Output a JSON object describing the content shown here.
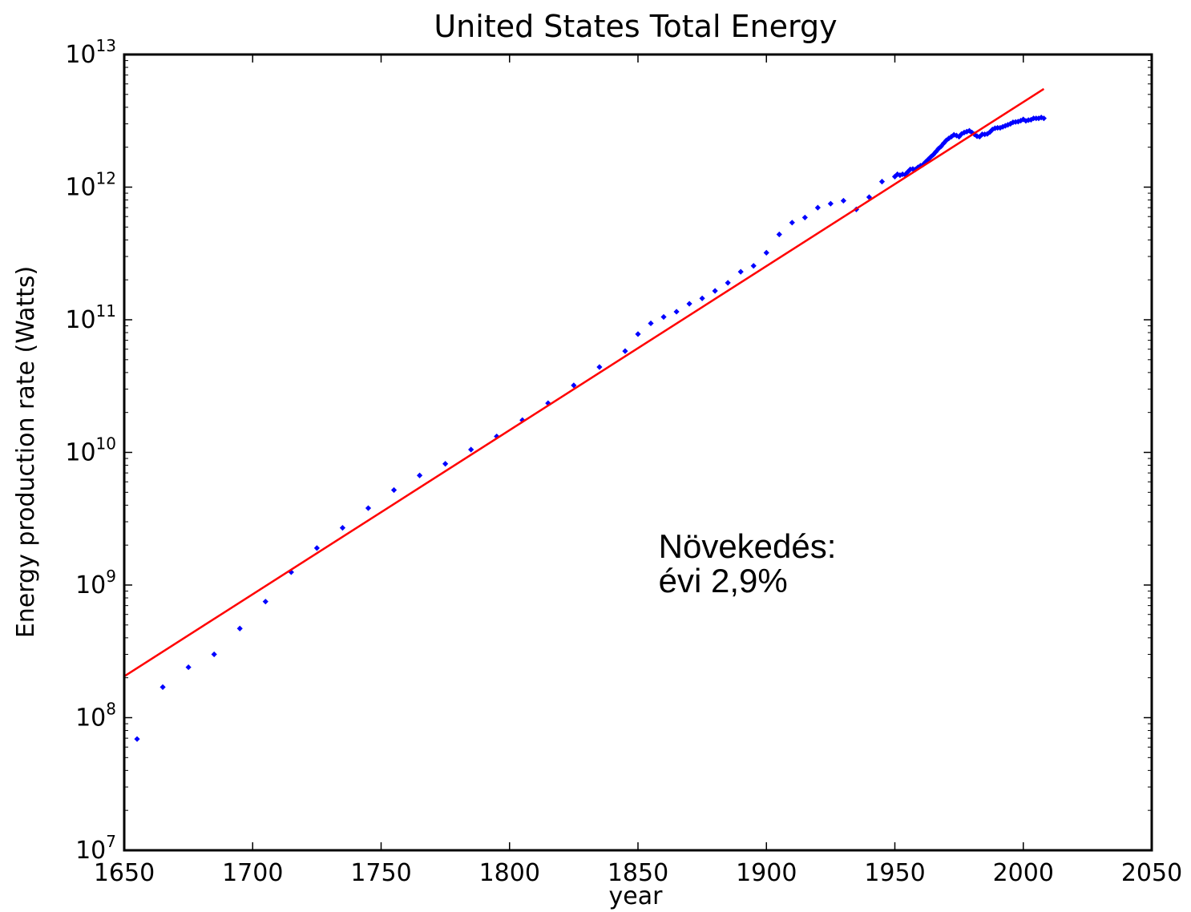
{
  "chart_data": {
    "type": "scatter",
    "title": "United States Total Energy",
    "xlabel": "year",
    "ylabel": "Energy production rate (Watts)",
    "xlim": [
      1650,
      2050
    ],
    "ylim": [
      10000000,
      10000000000000
    ],
    "yscale": "log",
    "x_ticks": [
      1650,
      1700,
      1750,
      1800,
      1850,
      1900,
      1950,
      2000,
      2050
    ],
    "y_ticks": [
      {
        "base": "10",
        "exp": "7"
      },
      {
        "base": "10",
        "exp": "8"
      },
      {
        "base": "10",
        "exp": "9"
      },
      {
        "base": "10",
        "exp": "10"
      },
      {
        "base": "10",
        "exp": "11"
      },
      {
        "base": "10",
        "exp": "12"
      },
      {
        "base": "10",
        "exp": "13"
      }
    ],
    "grid": false,
    "series": [
      {
        "kind": "scatter",
        "color": "#0000ff",
        "points": [
          [
            1655,
            69000000.0
          ],
          [
            1665,
            170000000.0
          ],
          [
            1675,
            240000000.0
          ],
          [
            1685,
            300000000.0
          ],
          [
            1695,
            470000000.0
          ],
          [
            1705,
            750000000.0
          ],
          [
            1715,
            1250000000.0
          ],
          [
            1725,
            1900000000.0
          ],
          [
            1735,
            2700000000.0
          ],
          [
            1745,
            3800000000.0
          ],
          [
            1755,
            5200000000.0
          ],
          [
            1765,
            6700000000.0
          ],
          [
            1775,
            8200000000.0
          ],
          [
            1785,
            10500000000.0
          ],
          [
            1795,
            13200000000.0
          ],
          [
            1805,
            17500000000.0
          ],
          [
            1815,
            23500000000.0
          ],
          [
            1825,
            32000000000.0
          ],
          [
            1835,
            44000000000.0
          ],
          [
            1845,
            58000000000.0
          ],
          [
            1850,
            78000000000.0
          ],
          [
            1855,
            94000000000.0
          ],
          [
            1860,
            105000000000.0
          ],
          [
            1865,
            115000000000.0
          ],
          [
            1870,
            132000000000.0
          ],
          [
            1875,
            145000000000.0
          ],
          [
            1880,
            165000000000.0
          ],
          [
            1885,
            190000000000.0
          ],
          [
            1890,
            230000000000.0
          ],
          [
            1895,
            255000000000.0
          ],
          [
            1900,
            320000000000.0
          ],
          [
            1905,
            440000000000.0
          ],
          [
            1910,
            540000000000.0
          ],
          [
            1915,
            590000000000.0
          ],
          [
            1920,
            700000000000.0
          ],
          [
            1925,
            750000000000.0
          ],
          [
            1930,
            790000000000.0
          ],
          [
            1935,
            680000000000.0
          ],
          [
            1940,
            840000000000.0
          ],
          [
            1945,
            1100000000000.0
          ],
          [
            1950,
            1200000000000.0
          ],
          [
            1951,
            1250000000000.0
          ],
          [
            1952,
            1230000000000.0
          ],
          [
            1953,
            1250000000000.0
          ],
          [
            1954,
            1240000000000.0
          ],
          [
            1955,
            1300000000000.0
          ],
          [
            1956,
            1360000000000.0
          ],
          [
            1957,
            1370000000000.0
          ],
          [
            1958,
            1360000000000.0
          ],
          [
            1959,
            1410000000000.0
          ],
          [
            1960,
            1450000000000.0
          ],
          [
            1961,
            1480000000000.0
          ],
          [
            1962,
            1550000000000.0
          ],
          [
            1963,
            1620000000000.0
          ],
          [
            1964,
            1690000000000.0
          ],
          [
            1965,
            1760000000000.0
          ],
          [
            1966,
            1850000000000.0
          ],
          [
            1967,
            1950000000000.0
          ],
          [
            1968,
            2030000000000.0
          ],
          [
            1969,
            2140000000000.0
          ],
          [
            1970,
            2250000000000.0
          ],
          [
            1971,
            2330000000000.0
          ],
          [
            1972,
            2400000000000.0
          ],
          [
            1973,
            2480000000000.0
          ],
          [
            1974,
            2450000000000.0
          ],
          [
            1975,
            2400000000000.0
          ],
          [
            1976,
            2520000000000.0
          ],
          [
            1977,
            2580000000000.0
          ],
          [
            1978,
            2620000000000.0
          ],
          [
            1979,
            2660000000000.0
          ],
          [
            1980,
            2580000000000.0
          ],
          [
            1981,
            2500000000000.0
          ],
          [
            1982,
            2420000000000.0
          ],
          [
            1983,
            2400000000000.0
          ],
          [
            1984,
            2500000000000.0
          ],
          [
            1985,
            2500000000000.0
          ],
          [
            1986,
            2520000000000.0
          ],
          [
            1987,
            2600000000000.0
          ],
          [
            1988,
            2720000000000.0
          ],
          [
            1989,
            2780000000000.0
          ],
          [
            1990,
            2800000000000.0
          ],
          [
            1991,
            2800000000000.0
          ],
          [
            1992,
            2850000000000.0
          ],
          [
            1993,
            2900000000000.0
          ],
          [
            1994,
            2950000000000.0
          ],
          [
            1995,
            3000000000000.0
          ],
          [
            1996,
            3080000000000.0
          ],
          [
            1997,
            3100000000000.0
          ],
          [
            1998,
            3120000000000.0
          ],
          [
            1999,
            3170000000000.0
          ],
          [
            2000,
            3240000000000.0
          ],
          [
            2001,
            3160000000000.0
          ],
          [
            2002,
            3200000000000.0
          ],
          [
            2003,
            3220000000000.0
          ],
          [
            2004,
            3300000000000.0
          ],
          [
            2005,
            3300000000000.0
          ],
          [
            2006,
            3300000000000.0
          ],
          [
            2007,
            3350000000000.0
          ],
          [
            2008,
            3300000000000.0
          ]
        ]
      },
      {
        "kind": "line",
        "color": "#ff0000",
        "points": [
          [
            1650,
            205000000.0
          ],
          [
            2008,
            5500000000000.0
          ]
        ]
      }
    ],
    "annotation": {
      "line1": "Növekedés:",
      "line2": "évi 2,9%",
      "x": 1858,
      "y1": 1600000000.0,
      "y2": 880000000.0
    }
  }
}
